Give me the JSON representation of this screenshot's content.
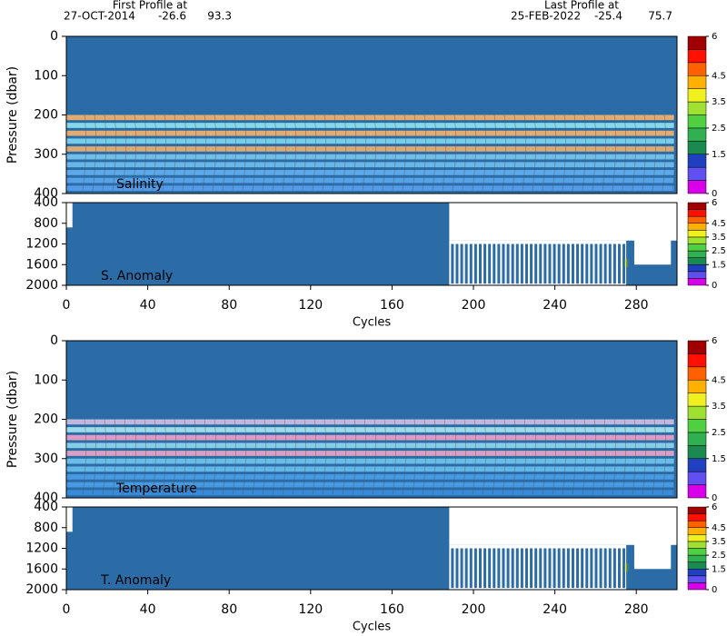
{
  "header": {
    "first_label": "First Profile at",
    "first_date": "27-OCT-2014",
    "first_lat": "-26.6",
    "first_lon": "93.3",
    "last_label": "Last Profile at",
    "last_date": "25-FEB-2022",
    "last_lat": "-25.4",
    "last_lon": "75.7"
  },
  "chart_data": [
    {
      "type": "heatmap",
      "label": "Salinity",
      "ylabel": "Pressure (dbar)",
      "xlim": [
        0,
        300
      ],
      "ylim": [
        0,
        400
      ],
      "yticks": [
        0,
        100,
        200,
        300,
        400
      ],
      "colorbar": {
        "lim": [
          0,
          6
        ],
        "ticks": [
          0,
          1.5,
          2.5,
          3.5,
          4.5,
          6
        ],
        "colors": [
          "#d800e8",
          "#6050f0",
          "#2040c0",
          "#1a8a50",
          "#30b050",
          "#50d040",
          "#a0e030",
          "#f0f020",
          "#ffb000",
          "#ff6000",
          "#ff1000",
          "#a00000"
        ]
      }
    },
    {
      "type": "heatmap",
      "label": "S. Anomaly",
      "xlabel": "Cycles",
      "xlim": [
        0,
        300
      ],
      "xticks": [
        0,
        40,
        80,
        120,
        160,
        200,
        240,
        280
      ],
      "ylim": [
        400,
        2000
      ],
      "yticks": [
        400,
        800,
        1200,
        1600,
        2000
      ],
      "colorbar": {
        "lim": [
          0,
          6
        ],
        "ticks": [
          0,
          1.5,
          2.5,
          3.5,
          4.5,
          6
        ],
        "colors": [
          "#d800e8",
          "#6050f0",
          "#2040c0",
          "#1a8a50",
          "#30b050",
          "#50d040",
          "#a0e030",
          "#f0f020",
          "#ffb000",
          "#ff6000",
          "#ff1000",
          "#a00000"
        ]
      }
    },
    {
      "type": "heatmap",
      "label": "Temperature",
      "ylabel": "Pressure (dbar)",
      "xlim": [
        0,
        300
      ],
      "ylim": [
        0,
        400
      ],
      "yticks": [
        0,
        100,
        200,
        300,
        400
      ],
      "colorbar": {
        "lim": [
          0,
          6
        ],
        "ticks": [
          0,
          1.5,
          2.5,
          3.5,
          4.5,
          6
        ],
        "colors": [
          "#d800e8",
          "#6050f0",
          "#2040c0",
          "#1a8a50",
          "#30b050",
          "#50d040",
          "#a0e030",
          "#f0f020",
          "#ffb000",
          "#ff6000",
          "#ff1000",
          "#a00000"
        ]
      }
    },
    {
      "type": "heatmap",
      "label": "T. Anomaly",
      "xlabel": "Cycles",
      "xlim": [
        0,
        300
      ],
      "xticks": [
        0,
        40,
        80,
        120,
        160,
        200,
        240,
        280
      ],
      "ylim": [
        400,
        2000
      ],
      "yticks": [
        400,
        800,
        1200,
        1600,
        2000
      ],
      "colorbar": {
        "lim": [
          0,
          6
        ],
        "ticks": [
          0,
          1.5,
          2.5,
          3.5,
          4.5,
          6
        ],
        "colors": [
          "#d800e8",
          "#6050f0",
          "#2040c0",
          "#1a8a50",
          "#30b050",
          "#50d040",
          "#a0e030",
          "#f0f020",
          "#ffb000",
          "#ff6000",
          "#ff1000",
          "#a00000"
        ]
      }
    }
  ]
}
